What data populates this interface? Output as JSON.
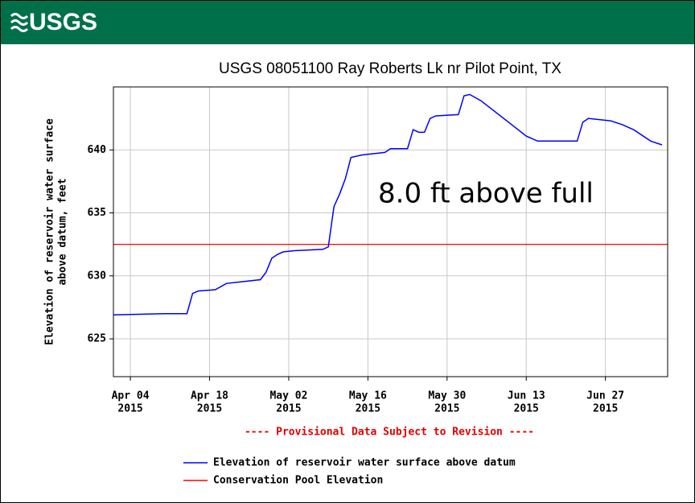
{
  "logo": "USGS",
  "chart_data": {
    "type": "line",
    "title": "USGS 08051100 Ray Roberts Lk nr Pilot Point, TX",
    "y_label": [
      "Elevation of reservoir water surface",
      "above datum, feet"
    ],
    "annotation": "8.0 ft above full",
    "note": "---- Provisional Data Subject to Revision ----",
    "xlim": [
      "2015-04-01",
      "2015-07-08"
    ],
    "xticks": [
      {
        "value": "2015-04-04",
        "label": [
          "Apr 04",
          "2015"
        ]
      },
      {
        "value": "2015-04-18",
        "label": [
          "Apr 18",
          "2015"
        ]
      },
      {
        "value": "2015-05-02",
        "label": [
          "May 02",
          "2015"
        ]
      },
      {
        "value": "2015-05-16",
        "label": [
          "May 16",
          "2015"
        ]
      },
      {
        "value": "2015-05-30",
        "label": [
          "May 30",
          "2015"
        ]
      },
      {
        "value": "2015-06-13",
        "label": [
          "Jun 13",
          "2015"
        ]
      },
      {
        "value": "2015-06-27",
        "label": [
          "Jun 27",
          "2015"
        ]
      }
    ],
    "ylim": [
      622,
      645
    ],
    "yticks": [
      625,
      630,
      635,
      640
    ],
    "grid": true,
    "x": [
      "2015-04-01",
      "2015-04-10",
      "2015-04-14",
      "2015-04-15",
      "2015-04-16",
      "2015-04-19",
      "2015-04-21",
      "2015-04-23",
      "2015-04-27",
      "2015-04-28",
      "2015-04-29",
      "2015-04-30",
      "2015-05-01",
      "2015-05-03",
      "2015-05-08",
      "2015-05-09",
      "2015-05-10",
      "2015-05-11",
      "2015-05-12",
      "2015-05-13",
      "2015-05-15",
      "2015-05-19",
      "2015-05-20",
      "2015-05-23",
      "2015-05-24",
      "2015-05-25",
      "2015-05-26",
      "2015-05-27",
      "2015-05-28",
      "2015-06-01",
      "2015-06-02",
      "2015-06-03",
      "2015-06-05",
      "2015-06-13",
      "2015-06-15",
      "2015-06-22",
      "2015-06-23",
      "2015-06-24",
      "2015-06-28",
      "2015-06-30",
      "2015-07-02",
      "2015-07-05",
      "2015-07-07"
    ],
    "series": [
      {
        "name": "Elevation of reservoir water surface above datum",
        "color": "#0000ff",
        "values": [
          626.9,
          627.0,
          627.0,
          628.6,
          628.8,
          628.9,
          629.4,
          629.5,
          629.7,
          630.3,
          631.4,
          631.7,
          631.9,
          632.0,
          632.1,
          632.3,
          635.5,
          636.5,
          637.7,
          639.4,
          639.6,
          639.8,
          640.1,
          640.1,
          641.6,
          641.4,
          641.4,
          642.5,
          642.7,
          642.8,
          644.3,
          644.4,
          643.9,
          641.1,
          640.7,
          640.7,
          642.2,
          642.5,
          642.3,
          642.0,
          641.6,
          640.7,
          640.4
        ]
      }
    ],
    "reference_lines": [
      {
        "name": "Conservation Pool Elevation",
        "color": "#ff0000",
        "value": 632.5
      }
    ]
  }
}
